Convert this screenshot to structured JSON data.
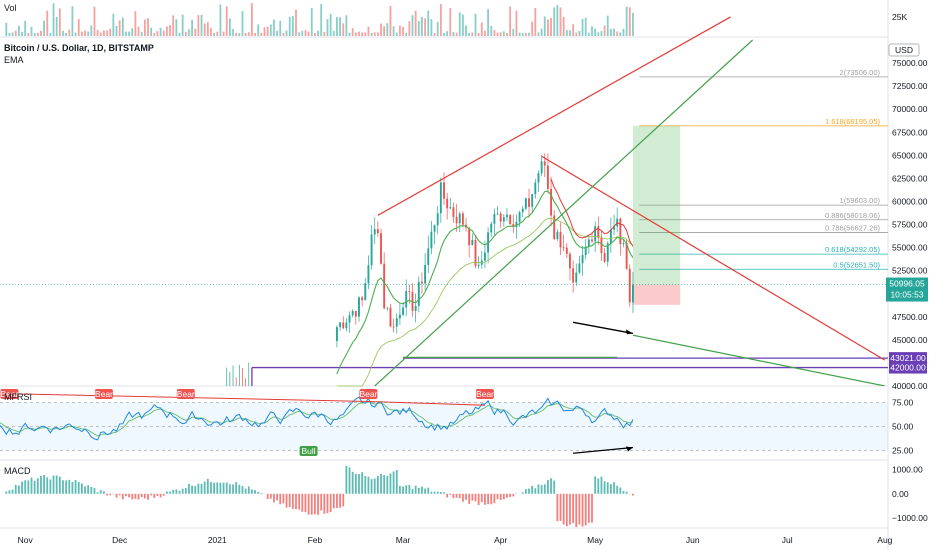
{
  "header": {
    "vol_label": "Vol",
    "title": "Bitcoin / U.S. Dollar, 1D, BITSTAMP",
    "ema_label": "EMA",
    "currency": "USD",
    "mfrsi_label": "MFRSI",
    "macd_label": "MACD"
  },
  "colors": {
    "up": "#26a69a",
    "down": "#ef5350",
    "wedge_red": "#e53935",
    "trend_green": "#43a047",
    "ema": "#e53935",
    "fib_orange": "#f5a623",
    "fib_teal": "#2bb3b3",
    "fib_grey": "#9e9e9e",
    "support_purple": "#6a3fb5",
    "price_tag": "#26a69a"
  },
  "chart_data": [
    {
      "type": "bar",
      "panel": "volume",
      "title": "Vol",
      "y_ticks": [
        "25K"
      ]
    },
    {
      "type": "candlestick",
      "panel": "price",
      "title": "Bitcoin / U.S. Dollar, 1D, BITSTAMP",
      "ylabel": "USD",
      "ylim": [
        40000,
        77500
      ],
      "y_ticks": [
        40000,
        42500,
        45000,
        47500,
        50000,
        52500,
        55000,
        57500,
        60000,
        62500,
        65000,
        67500,
        70000,
        72500,
        75000
      ],
      "y_tick_labels": [
        "40000.00",
        "42500.00",
        "45000.00",
        "47500.00",
        "50000.00",
        "52500.00",
        "55000.00",
        "57500.00",
        "60000.00",
        "62500.00",
        "65000.00",
        "67500.00",
        "70000.00",
        "72500.00",
        "75000.00"
      ],
      "x_tick_labels": [
        "Nov",
        "Dec",
        "2021",
        "Feb",
        "Mar",
        "Apr",
        "May",
        "Jun",
        "Jul",
        "Aug"
      ],
      "x_tick_dates": [
        "2020-11-01",
        "2020-12-01",
        "2021-01-01",
        "2021-02-01",
        "2021-03-01",
        "2021-04-01",
        "2021-05-01",
        "2021-06-01",
        "2021-07-01",
        "2021-08-01"
      ],
      "xlim": [
        "2020-10-24",
        "2021-08-02"
      ],
      "series": [
        {
          "name": "Close",
          "points": [
            [
              "2021-02-08",
              46400
            ],
            [
              "2021-02-12",
              47800
            ],
            [
              "2021-02-16",
              49100
            ],
            [
              "2021-02-19",
              55800
            ],
            [
              "2021-02-21",
              57500
            ],
            [
              "2021-02-23",
              49000
            ],
            [
              "2021-02-26",
              46300
            ],
            [
              "2021-03-01",
              49500
            ],
            [
              "2021-03-05",
              48800
            ],
            [
              "2021-03-09",
              54800
            ],
            [
              "2021-03-13",
              61000
            ],
            [
              "2021-03-17",
              58700
            ],
            [
              "2021-03-21",
              57500
            ],
            [
              "2021-03-25",
              52300
            ],
            [
              "2021-03-29",
              57800
            ],
            [
              "2021-04-02",
              58900
            ],
            [
              "2021-04-06",
              58000
            ],
            [
              "2021-04-10",
              59800
            ],
            [
              "2021-04-13",
              63200
            ],
            [
              "2021-04-15",
              64000
            ],
            [
              "2021-04-18",
              56500
            ],
            [
              "2021-04-21",
              55500
            ],
            [
              "2021-04-24",
              50200
            ],
            [
              "2021-04-28",
              54800
            ],
            [
              "2021-05-01",
              57700
            ],
            [
              "2021-05-04",
              53700
            ],
            [
              "2021-05-07",
              57800
            ],
            [
              "2021-05-10",
              55800
            ],
            [
              "2021-05-12",
              49200
            ],
            [
              "2021-05-13",
              50996.05
            ]
          ]
        }
      ],
      "current_price": {
        "value": 50996.05,
        "label": "50996.05",
        "countdown": "10:05:53"
      },
      "fib_levels": [
        {
          "label": "2(73506.00)",
          "value": 73506.0,
          "color": "fib_grey"
        },
        {
          "label": "1.618(68195.05)",
          "value": 68195.05,
          "color": "fib_orange"
        },
        {
          "label": "1(59603.00)",
          "value": 59603.0,
          "color": "fib_grey"
        },
        {
          "label": "0.886(58018.06)",
          "value": 58018.06,
          "color": "fib_grey"
        },
        {
          "label": "0.786(56627.26)",
          "value": 56627.26,
          "color": "fib_grey"
        },
        {
          "label": "0.618(54292.05)",
          "value": 54292.05,
          "color": "fib_teal"
        },
        {
          "label": "0.5(52651.50)",
          "value": 52651.5,
          "color": "fib_teal"
        }
      ],
      "support_levels": [
        {
          "label": "43021.00",
          "value": 43021.0
        },
        {
          "label": "42000.00",
          "value": 42000.0
        }
      ],
      "trendlines": [
        {
          "color": "wedge_red",
          "from": [
            "2021-02-21",
            58500
          ],
          "to": [
            "2021-06-13",
            80000
          ]
        },
        {
          "color": "wedge_red",
          "from": [
            "2021-04-14",
            64900
          ],
          "to": [
            "2021-08-01",
            42800
          ]
        },
        {
          "color": "trend_green",
          "from": [
            "2021-02-20",
            40000
          ],
          "to": [
            "2021-06-20",
            77500
          ]
        },
        {
          "color": "trend_green",
          "from": [
            "2021-05-13",
            45500
          ],
          "to": [
            "2021-08-01",
            40000
          ]
        },
        {
          "color": "trend_green",
          "from": [
            "2021-03-01",
            43100
          ],
          "to": [
            "2021-05-08",
            43100
          ]
        }
      ],
      "divergence_arrow": {
        "from": [
          "2021-04-24",
          46900
        ],
        "to": [
          "2021-05-13",
          45700
        ]
      },
      "projection": {
        "start": "2021-05-13",
        "end": "2021-05-28",
        "entry": 50996.05,
        "target": 68195.05,
        "stop": 48800
      }
    },
    {
      "type": "line",
      "panel": "mfrsi",
      "title": "MFRSI",
      "ylim": [
        15,
        90
      ],
      "y_ticks": [
        25,
        50,
        75
      ],
      "y_tick_labels": [
        "25.00",
        "50.00",
        "75.00"
      ],
      "signals": [
        {
          "label": "Bear",
          "date": "2020-10-27"
        },
        {
          "label": "Bear",
          "date": "2020-11-26"
        },
        {
          "label": "Bear",
          "date": "2020-12-22"
        },
        {
          "label": "Bear",
          "date": "2021-02-18"
        },
        {
          "label": "Bear",
          "date": "2021-03-27"
        },
        {
          "label": "Bull",
          "date": "2021-01-30"
        }
      ]
    },
    {
      "type": "bar",
      "panel": "macd",
      "title": "MACD",
      "ylim": [
        -1400,
        1300
      ],
      "y_ticks": [
        1000,
        0,
        -1000
      ],
      "y_tick_labels": [
        "1000.00",
        "0.00",
        "−1000.00"
      ]
    }
  ]
}
